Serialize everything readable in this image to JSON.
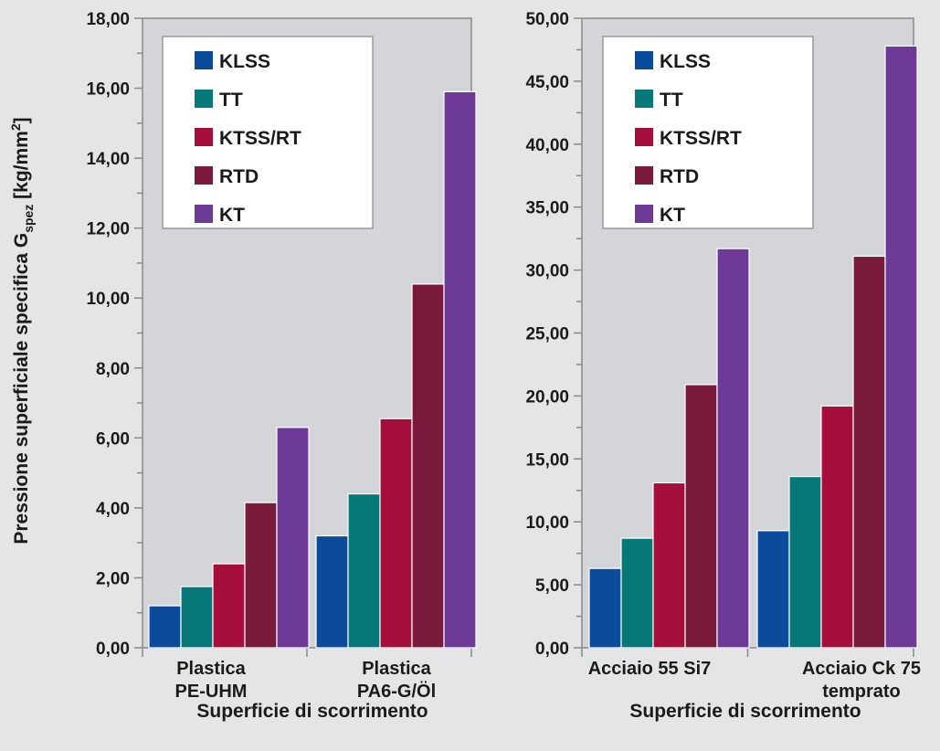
{
  "colors": {
    "background": "#e3e5e7",
    "plot_area": "#d4d5d8",
    "axis": "#8a8a8a",
    "KLSS": "#0b4b9b",
    "TT": "#077878",
    "KTSS/RT": "#a50d3b",
    "RTD": "#7a1a3c",
    "KT": "#6d3a98"
  },
  "ylabel": {
    "main": "Pressione superficiale specifica G",
    "sub": "spez",
    "unit_open": " [kg/mm",
    "sup": "2",
    "unit_close": "]"
  },
  "chart_data": [
    {
      "type": "bar",
      "xlabel": "Superficie di scorrimento",
      "ylim": [
        0,
        18
      ],
      "yticks": [
        0,
        2,
        4,
        6,
        8,
        10,
        12,
        14,
        16,
        18
      ],
      "ytick_labels": [
        "0,00",
        "2,00",
        "4,00",
        "6,00",
        "8,00",
        "10,00",
        "12,00",
        "14,00",
        "16,00",
        "18,00"
      ],
      "categories": [
        [
          "Plastica",
          "PE-UHM"
        ],
        [
          "Plastica",
          "PA6-G/Öl"
        ]
      ],
      "legend": {
        "position": "top-left"
      },
      "grid": false,
      "series": [
        {
          "name": "KLSS",
          "values": [
            1.2,
            3.2
          ]
        },
        {
          "name": "TT",
          "values": [
            1.75,
            4.4
          ]
        },
        {
          "name": "KTSS/RT",
          "values": [
            2.4,
            6.55
          ]
        },
        {
          "name": "RTD",
          "values": [
            4.15,
            10.4
          ]
        },
        {
          "name": "KT",
          "values": [
            6.3,
            15.9
          ]
        }
      ]
    },
    {
      "type": "bar",
      "xlabel": "Superficie di scorrimento",
      "ylim": [
        0,
        50
      ],
      "yticks": [
        0,
        5,
        10,
        15,
        20,
        25,
        30,
        35,
        40,
        45,
        50
      ],
      "ytick_labels": [
        "0,00",
        "5,00",
        "10,00",
        "15,00",
        "20,00",
        "25,00",
        "30,00",
        "35,00",
        "40,00",
        "45,00",
        "50,00"
      ],
      "categories": [
        [
          "Acciaio 55 Si7"
        ],
        [
          "Acciaio Ck 75",
          "temprato"
        ]
      ],
      "legend": {
        "position": "top-left"
      },
      "grid": false,
      "series": [
        {
          "name": "KLSS",
          "values": [
            6.3,
            9.3
          ]
        },
        {
          "name": "TT",
          "values": [
            8.7,
            13.6
          ]
        },
        {
          "name": "KTSS/RT",
          "values": [
            13.1,
            19.2
          ]
        },
        {
          "name": "RTD",
          "values": [
            20.9,
            31.1
          ]
        },
        {
          "name": "KT",
          "values": [
            31.7,
            47.8
          ]
        }
      ]
    }
  ]
}
